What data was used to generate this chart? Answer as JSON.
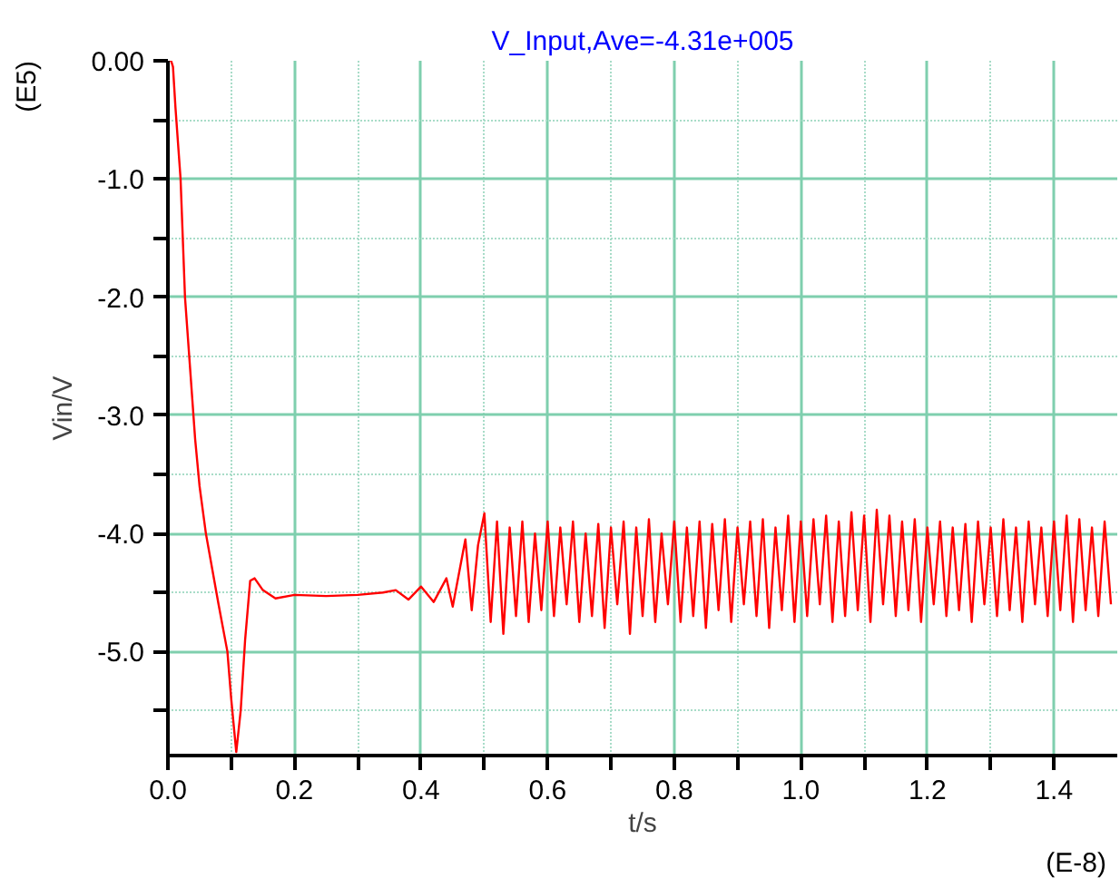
{
  "chart_data": {
    "type": "line",
    "title": "V_Input,Ave=-4.31e+005",
    "xlabel": "t/s",
    "ylabel": "Vin/V",
    "annotations": [
      "(E5)",
      "(E-8)"
    ],
    "xlim": [
      0,
      1.5
    ],
    "ylim": [
      -5.88,
      0
    ],
    "xticks": [
      {
        "value": 0,
        "label": "0.0"
      },
      {
        "value": 0.1,
        "label": null
      },
      0.2,
      {
        "value": 0.3,
        "label": null
      },
      0.4,
      {
        "value": 0.5,
        "label": null
      },
      0.6,
      {
        "value": 0.7,
        "label": null
      },
      0.8,
      {
        "value": 0.9,
        "label": null
      },
      {
        "value": 1,
        "label": "1.0"
      },
      {
        "value": 1.1,
        "label": null
      },
      1.2,
      {
        "value": 1.3,
        "label": null
      },
      1.4
    ],
    "yticks": [
      {
        "value": 0,
        "label": "0.00"
      },
      {
        "value": -0.5,
        "label": null
      },
      {
        "value": -1,
        "label": "-1.0"
      },
      {
        "value": -1.5,
        "label": null
      },
      {
        "value": -2,
        "label": "-2.0"
      },
      {
        "value": -2.5,
        "label": null
      },
      {
        "value": -3,
        "label": "-3.0"
      },
      {
        "value": -3.5,
        "label": null
      },
      {
        "value": -4,
        "label": "-4.0"
      },
      {
        "value": -4.5,
        "label": null
      },
      {
        "value": -5,
        "label": "-5.0"
      },
      {
        "value": -5.5,
        "label": null
      }
    ],
    "grid": true,
    "marker": "none",
    "line_style": "solid",
    "series": [
      {
        "color": "#ff0000",
        "x": [
          0,
          0.005,
          0.008,
          0.012,
          0.02,
          0.027,
          0.035,
          0.043,
          0.05,
          0.06,
          0.07,
          0.08,
          0.094,
          0.1,
          0.108,
          0.115,
          0.122,
          0.13,
          0.137,
          0.15,
          0.17,
          0.2,
          0.25,
          0.3,
          0.34,
          0.36,
          0.38,
          0.4,
          0.42,
          0.44,
          0.45,
          0.47,
          0.48,
          0.49,
          0.5,
          0.51,
          0.52,
          0.53,
          0.54,
          0.55,
          0.56,
          0.57,
          0.58,
          0.59,
          0.6,
          0.61,
          0.62,
          0.63,
          0.64,
          0.65,
          0.66,
          0.67,
          0.68,
          0.69,
          0.7,
          0.71,
          0.72,
          0.73,
          0.74,
          0.75,
          0.76,
          0.77,
          0.78,
          0.79,
          0.8,
          0.81,
          0.82,
          0.83,
          0.84,
          0.85,
          0.86,
          0.87,
          0.88,
          0.89,
          0.9,
          0.91,
          0.92,
          0.93,
          0.94,
          0.95,
          0.96,
          0.97,
          0.98,
          0.99,
          1.0,
          1.01,
          1.02,
          1.03,
          1.04,
          1.05,
          1.06,
          1.07,
          1.08,
          1.09,
          1.1,
          1.11,
          1.12,
          1.13,
          1.14,
          1.15,
          1.16,
          1.17,
          1.18,
          1.19,
          1.2,
          1.21,
          1.22,
          1.23,
          1.24,
          1.25,
          1.26,
          1.27,
          1.28,
          1.29,
          1.3,
          1.31,
          1.32,
          1.33,
          1.34,
          1.35,
          1.36,
          1.37,
          1.38,
          1.39,
          1.4,
          1.41,
          1.42,
          1.43,
          1.44,
          1.45,
          1.46,
          1.47,
          1.48,
          1.49
        ],
        "values": [
          0,
          0,
          -0.05,
          -0.4,
          -1.0,
          -2.0,
          -2.6,
          -3.2,
          -3.6,
          -4.0,
          -4.3,
          -4.6,
          -5.0,
          -5.4,
          -5.85,
          -5.5,
          -4.9,
          -4.4,
          -4.38,
          -4.48,
          -4.55,
          -4.52,
          -4.53,
          -4.52,
          -4.5,
          -4.48,
          -4.56,
          -4.45,
          -4.58,
          -4.38,
          -4.62,
          -4.05,
          -4.65,
          -4.1,
          -3.83,
          -4.75,
          -3.9,
          -4.85,
          -3.95,
          -4.7,
          -3.9,
          -4.75,
          -4.0,
          -4.65,
          -3.9,
          -4.7,
          -3.95,
          -4.6,
          -3.9,
          -4.75,
          -4.0,
          -4.7,
          -3.92,
          -4.8,
          -3.95,
          -4.6,
          -3.9,
          -4.85,
          -3.95,
          -4.7,
          -3.88,
          -4.75,
          -4.0,
          -4.6,
          -3.9,
          -4.75,
          -3.95,
          -4.7,
          -3.9,
          -4.8,
          -3.92,
          -4.65,
          -3.88,
          -4.75,
          -3.95,
          -4.6,
          -3.9,
          -4.7,
          -3.88,
          -4.8,
          -3.95,
          -4.65,
          -3.85,
          -4.75,
          -3.9,
          -4.7,
          -3.88,
          -4.6,
          -3.85,
          -4.75,
          -3.9,
          -4.7,
          -3.82,
          -4.65,
          -3.85,
          -4.75,
          -3.8,
          -4.6,
          -3.85,
          -4.7,
          -3.9,
          -4.65,
          -3.88,
          -4.75,
          -3.95,
          -4.6,
          -3.9,
          -4.7,
          -3.95,
          -4.65,
          -3.92,
          -4.75,
          -3.9,
          -4.6,
          -3.95,
          -4.7,
          -3.88,
          -4.65,
          -3.95,
          -4.75,
          -3.9,
          -4.6,
          -3.95,
          -4.7,
          -3.9,
          -4.65,
          -3.85,
          -4.75,
          -3.88,
          -4.65,
          -3.95,
          -4.7,
          -3.9,
          -4.6
        ]
      }
    ]
  }
}
